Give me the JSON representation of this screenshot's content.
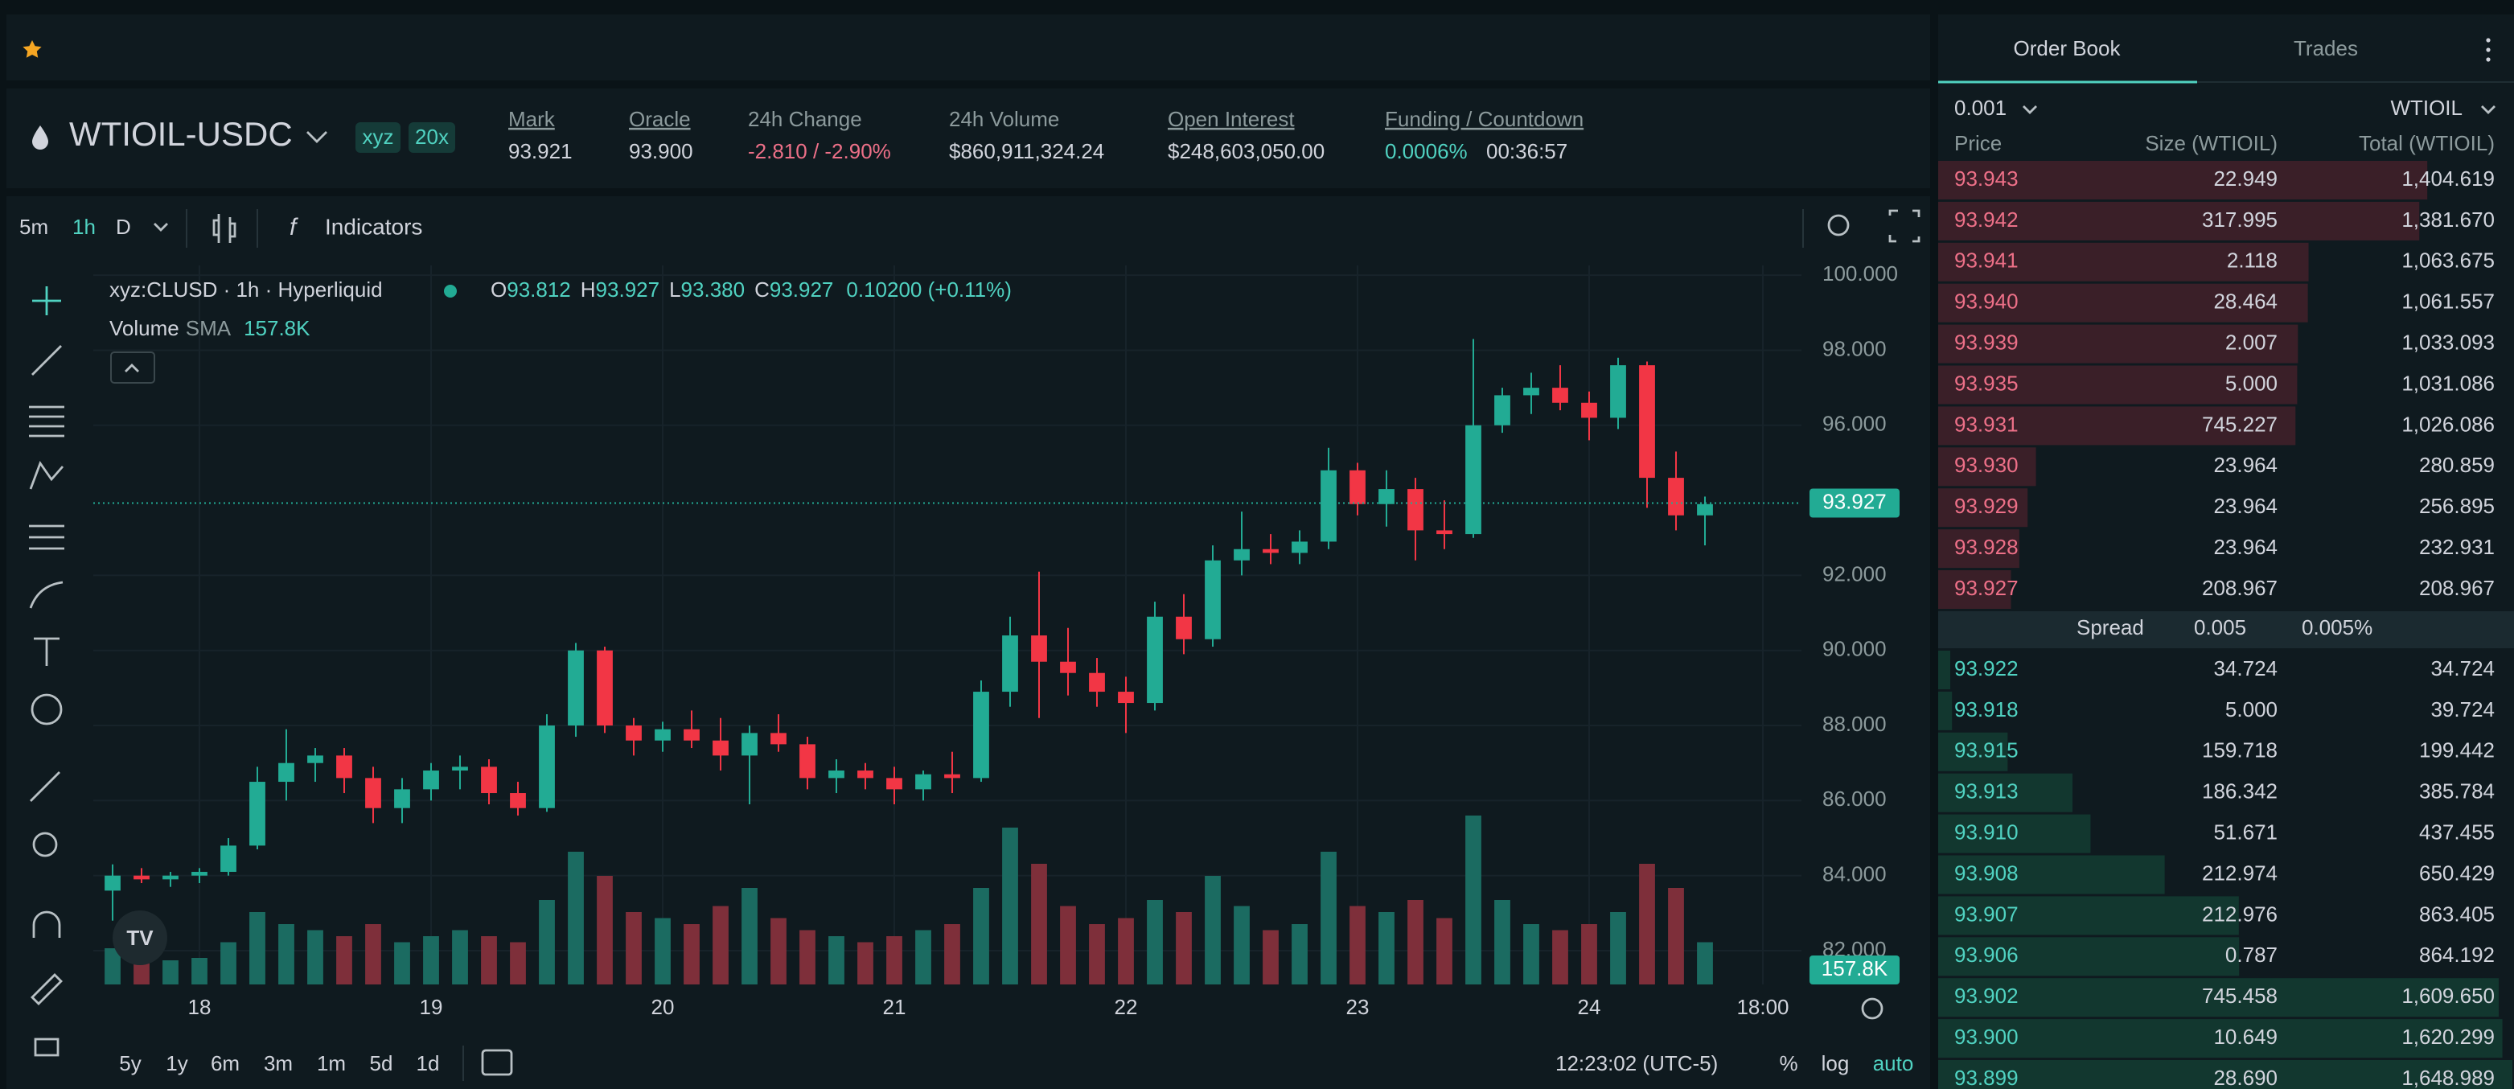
{
  "header": {
    "symbol": "WTIOIL-USDC",
    "badges": [
      "xyz",
      "20x"
    ],
    "stats": [
      {
        "label": "Mark",
        "value": "93.921"
      },
      {
        "label": "Oracle",
        "value": "93.900"
      },
      {
        "label": "24h Change",
        "value": "-2.810 / -2.90%"
      },
      {
        "label": "24h Volume",
        "value": "$860,911,324.24"
      },
      {
        "label": "Open Interest",
        "value": "$248,603,050.00"
      },
      {
        "label": "Funding / Countdown",
        "value": "0.0006%",
        "extra": "00:36:57"
      }
    ]
  },
  "toolbar": {
    "intervals": [
      "5m",
      "1h",
      "D"
    ],
    "indicators": "Indicators"
  },
  "chart_data": {
    "type": "candlestick",
    "legend": {
      "symbol": "xyz:CLUSD · 1h · Hyperliquid",
      "ohlc": [
        {
          "key": "O",
          "value": "93.812"
        },
        {
          "key": "H",
          "value": "93.927"
        },
        {
          "key": "L",
          "value": "93.380"
        },
        {
          "key": "C",
          "value": "93.927"
        }
      ],
      "change": "0.10200 (+0.11%)",
      "volume": "Volume",
      "sma": "SMA",
      "sma_value": "157.8K"
    },
    "x": [
      -9,
      -6,
      -3,
      0,
      3,
      6,
      9,
      12,
      15,
      18,
      21,
      24,
      27,
      30,
      33,
      36,
      39,
      42,
      45,
      48,
      51,
      54,
      57,
      60,
      63,
      66,
      69,
      72,
      75,
      78,
      81,
      84,
      87,
      90,
      93,
      96,
      99,
      102,
      105,
      108,
      111,
      114,
      117,
      120,
      123,
      126,
      129,
      132,
      135,
      138,
      141,
      144,
      147,
      150,
      153,
      156
    ],
    "open": [
      83.6,
      84.0,
      83.9,
      84.0,
      84.1,
      84.8,
      86.5,
      87.0,
      87.2,
      86.6,
      85.8,
      86.3,
      86.8,
      86.9,
      86.2,
      85.8,
      88.0,
      90.0,
      88.0,
      87.6,
      87.9,
      87.6,
      87.2,
      87.8,
      87.5,
      86.6,
      86.8,
      86.6,
      86.3,
      86.7,
      86.6,
      88.9,
      90.4,
      89.7,
      89.4,
      88.9,
      88.6,
      90.9,
      90.3,
      92.4,
      92.7,
      92.6,
      92.9,
      94.8,
      93.9,
      94.3,
      93.2,
      93.1,
      96.0,
      96.8,
      97.0,
      96.6,
      96.2,
      97.6,
      94.6,
      93.6
    ],
    "high": [
      84.3,
      84.2,
      84.1,
      84.2,
      85.0,
      86.9,
      87.9,
      87.4,
      87.4,
      86.9,
      86.6,
      87.0,
      87.2,
      87.1,
      86.5,
      88.3,
      90.2,
      90.1,
      88.2,
      88.1,
      88.4,
      88.2,
      88.0,
      88.3,
      87.7,
      87.1,
      87.0,
      86.9,
      86.8,
      87.3,
      89.2,
      90.9,
      92.1,
      90.6,
      89.8,
      89.3,
      91.3,
      91.5,
      92.8,
      93.7,
      93.1,
      93.2,
      95.4,
      95.0,
      94.8,
      94.6,
      94.0,
      98.3,
      97.0,
      97.4,
      97.6,
      96.9,
      97.8,
      97.7,
      95.3,
      94.1
    ],
    "low": [
      82.8,
      83.8,
      83.7,
      83.8,
      84.0,
      84.7,
      86.0,
      86.5,
      86.2,
      85.4,
      85.4,
      86.0,
      86.3,
      85.9,
      85.6,
      85.7,
      87.7,
      87.8,
      87.2,
      87.3,
      87.4,
      86.8,
      85.9,
      87.3,
      86.3,
      86.2,
      86.3,
      85.9,
      86.0,
      86.2,
      86.5,
      88.5,
      88.2,
      88.8,
      88.5,
      87.8,
      88.4,
      89.9,
      90.1,
      92.0,
      92.3,
      92.3,
      92.7,
      93.6,
      93.3,
      92.4,
      92.7,
      93.0,
      95.8,
      96.3,
      96.4,
      95.6,
      95.9,
      93.8,
      93.2,
      92.8
    ],
    "close": [
      84.0,
      83.9,
      84.0,
      84.1,
      84.8,
      86.5,
      87.0,
      87.2,
      86.6,
      85.8,
      86.3,
      86.8,
      86.9,
      86.2,
      85.8,
      88.0,
      90.0,
      88.0,
      87.6,
      87.9,
      87.6,
      87.2,
      87.8,
      87.5,
      86.6,
      86.8,
      86.6,
      86.3,
      86.7,
      86.6,
      88.9,
      90.4,
      89.7,
      89.4,
      88.9,
      88.6,
      90.9,
      90.3,
      92.4,
      92.7,
      92.6,
      92.9,
      94.8,
      93.9,
      94.3,
      93.2,
      93.1,
      96.0,
      96.8,
      97.0,
      96.6,
      96.2,
      97.6,
      94.6,
      93.6,
      93.9
    ],
    "volume": [
      300,
      250,
      200,
      220,
      350,
      600,
      500,
      450,
      400,
      500,
      350,
      400,
      450,
      400,
      350,
      700,
      1100,
      900,
      600,
      550,
      500,
      650,
      800,
      550,
      450,
      400,
      350,
      400,
      450,
      500,
      800,
      1300,
      1000,
      650,
      500,
      550,
      700,
      600,
      900,
      650,
      450,
      500,
      1100,
      650,
      600,
      700,
      550,
      1400,
      700,
      500,
      450,
      500,
      600,
      1000,
      800,
      350
    ],
    "up_color": "#22ab94",
    "down_color": "#f23645",
    "up_volume_color": "#1b6b61",
    "down_volume_color": "#7e2f3a",
    "xlim": [
      -11,
      166
    ],
    "xticks": [
      {
        "value": 0,
        "label": "18"
      },
      {
        "value": 24,
        "label": "19"
      },
      {
        "value": 48,
        "label": "20"
      },
      {
        "value": 72,
        "label": "21"
      },
      {
        "value": 96,
        "label": "22"
      },
      {
        "value": 120,
        "label": "23"
      },
      {
        "value": 144,
        "label": "24"
      },
      {
        "value": 162,
        "label": "18:00"
      }
    ],
    "ylim": [
      81.1,
      100.26
    ],
    "yticks": [
      {
        "value": 82,
        "label": "82.000"
      },
      {
        "value": 84,
        "label": "84.000"
      },
      {
        "value": 86,
        "label": "86.000"
      },
      {
        "value": 88,
        "label": "88.000"
      },
      {
        "value": 90,
        "label": "90.000"
      },
      {
        "value": 92,
        "label": "92.000"
      },
      {
        "value": 96,
        "label": "96.000"
      },
      {
        "value": 98,
        "label": "98.000"
      },
      {
        "value": 100,
        "label": "100.000"
      }
    ],
    "grid": true,
    "last_price": {
      "value": 93.927,
      "label": "93.927"
    },
    "last_volume_label": "157.8K"
  },
  "bottom_bar": {
    "ranges": [
      "5y",
      "1y",
      "6m",
      "3m",
      "1m",
      "5d",
      "1d"
    ],
    "time": "12:23:02 (UTC-5)",
    "options": [
      "%",
      "log",
      "auto"
    ]
  },
  "order_book": {
    "tabs": [
      "Order Book",
      "Trades"
    ],
    "tick": "0.001",
    "unit": "WTIOIL",
    "columns": [
      "Price",
      "Size (WTIOIL)",
      "Total (WTIOIL)"
    ],
    "asks": [
      {
        "price": "93.943",
        "size": "22.949",
        "total": {
          "value": 1404.619,
          "label": "1,404.619"
        }
      },
      {
        "price": "93.942",
        "size": "317.995",
        "total": {
          "value": 1381.67,
          "label": "1,381.670"
        }
      },
      {
        "price": "93.941",
        "size": "2.118",
        "total": {
          "value": 1063.675,
          "label": "1,063.675"
        }
      },
      {
        "price": "93.940",
        "size": "28.464",
        "total": {
          "value": 1061.557,
          "label": "1,061.557"
        }
      },
      {
        "price": "93.939",
        "size": "2.007",
        "total": {
          "value": 1033.093,
          "label": "1,033.093"
        }
      },
      {
        "price": "93.935",
        "size": "5.000",
        "total": {
          "value": 1031.086,
          "label": "1,031.086"
        }
      },
      {
        "price": "93.931",
        "size": "745.227",
        "total": {
          "value": 1026.086,
          "label": "1,026.086"
        }
      },
      {
        "price": "93.930",
        "size": "23.964",
        "total": {
          "value": 280.859,
          "label": "280.859"
        }
      },
      {
        "price": "93.929",
        "size": "23.964",
        "total": {
          "value": 256.895,
          "label": "256.895"
        }
      },
      {
        "price": "93.928",
        "size": "23.964",
        "total": {
          "value": 232.931,
          "label": "232.931"
        }
      },
      {
        "price": "93.927",
        "size": "208.967",
        "total": {
          "value": 208.967,
          "label": "208.967"
        }
      }
    ],
    "spread": {
      "label": "Spread",
      "value": "0.005",
      "percent": "0.005%"
    },
    "bids": [
      {
        "price": "93.922",
        "size": "34.724",
        "total": {
          "value": 34.724,
          "label": "34.724"
        }
      },
      {
        "price": "93.918",
        "size": "5.000",
        "total": {
          "value": 39.724,
          "label": "39.724"
        }
      },
      {
        "price": "93.915",
        "size": "159.718",
        "total": {
          "value": 199.442,
          "label": "199.442"
        }
      },
      {
        "price": "93.913",
        "size": "186.342",
        "total": {
          "value": 385.784,
          "label": "385.784"
        }
      },
      {
        "price": "93.910",
        "size": "51.671",
        "total": {
          "value": 437.455,
          "label": "437.455"
        }
      },
      {
        "price": "93.908",
        "size": "212.974",
        "total": {
          "value": 650.429,
          "label": "650.429"
        }
      },
      {
        "price": "93.907",
        "size": "212.976",
        "total": {
          "value": 863.405,
          "label": "863.405"
        }
      },
      {
        "price": "93.906",
        "size": "0.787",
        "total": {
          "value": 864.192,
          "label": "864.192"
        }
      },
      {
        "price": "93.902",
        "size": "745.458",
        "total": {
          "value": 1609.65,
          "label": "1,609.650"
        }
      },
      {
        "price": "93.900",
        "size": "10.649",
        "total": {
          "value": 1620.299,
          "label": "1,620.299"
        }
      },
      {
        "price": "93.899",
        "size": "28.690",
        "total": {
          "value": 1648.989,
          "label": "1,648.989"
        }
      }
    ]
  }
}
